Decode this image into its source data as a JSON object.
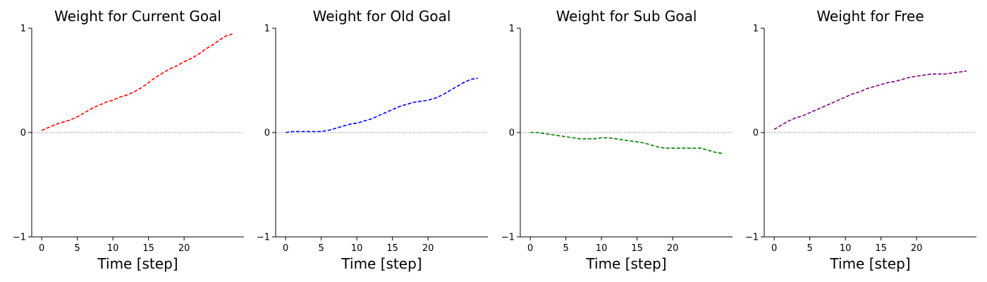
{
  "chart_data": [
    {
      "type": "line",
      "title": "Weight for Current Goal",
      "xlabel": "Time [step]",
      "ylabel": "",
      "xlim": [
        -1.4,
        28.4
      ],
      "ylim": [
        -1,
        1
      ],
      "xticks": [
        0,
        5,
        10,
        15,
        20
      ],
      "yticks": [
        -1,
        0,
        1
      ],
      "reference_line_y": 0,
      "color": "#ff0000",
      "line_style": "dashed",
      "x": [
        0,
        1,
        2,
        3,
        4,
        5,
        6,
        7,
        8,
        9,
        10,
        11,
        12,
        13,
        14,
        15,
        16,
        17,
        18,
        19,
        20,
        21,
        22,
        23,
        24,
        25,
        26,
        27
      ],
      "y": [
        0.02,
        0.05,
        0.08,
        0.1,
        0.12,
        0.15,
        0.19,
        0.23,
        0.26,
        0.29,
        0.31,
        0.34,
        0.36,
        0.39,
        0.43,
        0.48,
        0.53,
        0.57,
        0.61,
        0.64,
        0.68,
        0.71,
        0.75,
        0.8,
        0.84,
        0.89,
        0.93,
        0.95
      ]
    },
    {
      "type": "line",
      "title": "Weight for Old Goal",
      "xlabel": "Time [step]",
      "ylabel": "",
      "xlim": [
        -1.4,
        28.4
      ],
      "ylim": [
        -1,
        1
      ],
      "xticks": [
        0,
        5,
        10,
        15,
        20
      ],
      "yticks": [
        -1,
        0,
        1
      ],
      "reference_line_y": 0,
      "color": "#0000ff",
      "line_style": "dashed",
      "x": [
        0,
        1,
        2,
        3,
        4,
        5,
        6,
        7,
        8,
        9,
        10,
        11,
        12,
        13,
        14,
        15,
        16,
        17,
        18,
        19,
        20,
        21,
        22,
        23,
        24,
        25,
        26,
        27
      ],
      "y": [
        0.0,
        0.01,
        0.01,
        0.01,
        0.01,
        0.01,
        0.02,
        0.04,
        0.06,
        0.08,
        0.09,
        0.11,
        0.13,
        0.16,
        0.19,
        0.22,
        0.25,
        0.27,
        0.29,
        0.3,
        0.31,
        0.33,
        0.36,
        0.4,
        0.44,
        0.48,
        0.51,
        0.52
      ]
    },
    {
      "type": "line",
      "title": "Weight for Sub Goal",
      "xlabel": "Time [step]",
      "ylabel": "",
      "xlim": [
        -1.4,
        28.4
      ],
      "ylim": [
        -1,
        1
      ],
      "xticks": [
        0,
        5,
        10,
        15,
        20
      ],
      "yticks": [
        -1,
        0,
        1
      ],
      "reference_line_y": 0,
      "color": "#008000",
      "line_style": "dashed",
      "x": [
        0,
        1,
        2,
        3,
        4,
        5,
        6,
        7,
        8,
        9,
        10,
        11,
        12,
        13,
        14,
        15,
        16,
        17,
        18,
        19,
        20,
        21,
        22,
        23,
        24,
        25,
        26,
        27
      ],
      "y": [
        0.0,
        0.0,
        -0.01,
        -0.02,
        -0.03,
        -0.04,
        -0.05,
        -0.06,
        -0.06,
        -0.06,
        -0.05,
        -0.05,
        -0.06,
        -0.07,
        -0.08,
        -0.09,
        -0.1,
        -0.12,
        -0.14,
        -0.15,
        -0.15,
        -0.15,
        -0.15,
        -0.15,
        -0.15,
        -0.17,
        -0.19,
        -0.2
      ]
    },
    {
      "type": "line",
      "title": "Weight for Free",
      "xlabel": "Time [step]",
      "ylabel": "",
      "xlim": [
        -1.4,
        28.4
      ],
      "ylim": [
        -1,
        1
      ],
      "xticks": [
        0,
        5,
        10,
        15,
        20
      ],
      "yticks": [
        -1,
        0,
        1
      ],
      "reference_line_y": 0,
      "color": "#800080",
      "line_style": "dashed",
      "x": [
        0,
        1,
        2,
        3,
        4,
        5,
        6,
        7,
        8,
        9,
        10,
        11,
        12,
        13,
        14,
        15,
        16,
        17,
        18,
        19,
        20,
        21,
        22,
        23,
        24,
        25,
        26,
        27
      ],
      "y": [
        0.03,
        0.07,
        0.11,
        0.14,
        0.16,
        0.19,
        0.22,
        0.25,
        0.28,
        0.31,
        0.34,
        0.37,
        0.39,
        0.42,
        0.44,
        0.46,
        0.48,
        0.49,
        0.51,
        0.53,
        0.54,
        0.55,
        0.56,
        0.56,
        0.56,
        0.57,
        0.58,
        0.59
      ]
    }
  ]
}
